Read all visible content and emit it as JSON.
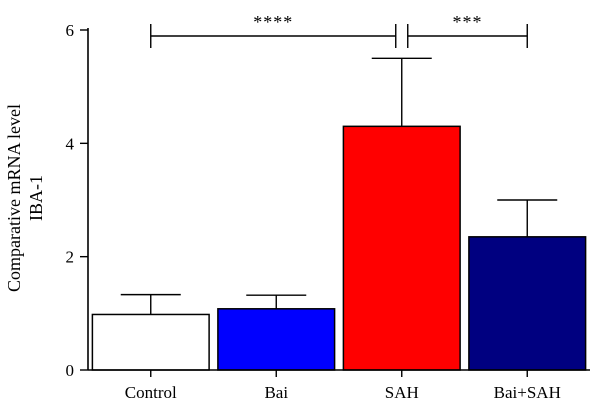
{
  "chart_data": {
    "type": "bar",
    "categories": [
      "Control",
      "Bai",
      "SAH",
      "Bai+SAH"
    ],
    "values": [
      0.98,
      1.08,
      4.3,
      2.35
    ],
    "errors": [
      0.35,
      0.24,
      1.2,
      0.65
    ],
    "colors": [
      "#ffffff",
      "#0000ff",
      "#ff0000",
      "#000080"
    ],
    "ylabel_lines": [
      "Comparative mRNA level",
      "IBA-1"
    ],
    "ylim": [
      0,
      6
    ],
    "yticks": [
      0,
      2,
      4,
      6
    ],
    "ytick_labels": [
      "0",
      "2",
      "4",
      "6"
    ],
    "grid": false,
    "significance": [
      {
        "from": 0,
        "to": 2,
        "label": "****"
      },
      {
        "from": 2,
        "to": 3,
        "label": "***"
      }
    ]
  }
}
